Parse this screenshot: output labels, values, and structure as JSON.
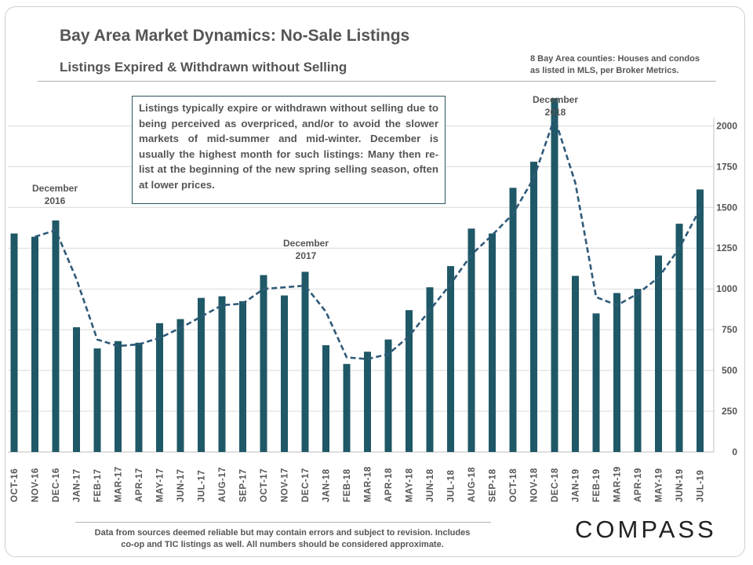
{
  "header": {
    "title": "Bay Area Market Dynamics: No-Sale Listings",
    "subtitle": "Listings Expired & Withdrawn without Selling",
    "source_line1": "8 Bay Area counties: Houses and condos",
    "source_line2": "as listed in MLS, per Broker Metrics."
  },
  "callout": {
    "text": "Listings typically expire or withdrawn without selling due to being perceived as overpriced, and/or to avoid the slower markets of mid-summer and mid-winter. December is usually the highest month for such listings: Many then re-list at the beginning of the new spring selling season, often at lower prices."
  },
  "footer": {
    "disclaimer_line1": "Data from sources deemed reliable but may contain errors and subject to revision.  Includes",
    "disclaimer_line2": "co-op and TIC listings as well. All numbers should be considered approximate.",
    "logo": "COMPASS"
  },
  "colors": {
    "bar": "#1f5866",
    "trend": "#2f5a78",
    "grid": "#d9d9d9",
    "text": "#555555"
  },
  "chart_data": {
    "type": "bar",
    "title": "Bay Area Market Dynamics: No-Sale Listings",
    "subtitle": "Listings Expired & Withdrawn without Selling",
    "categories": [
      "OCT-16",
      "NOV-16",
      "DEC-16",
      "JAN-17",
      "FEB-17",
      "MAR-17",
      "APR-17",
      "MAY-17",
      "JUN-17",
      "JUL-17",
      "AUG-17",
      "SEP-17",
      "OCT-17",
      "NOV-17",
      "DEC-17",
      "JAN-18",
      "FEB-18",
      "MAR-18",
      "APR-18",
      "MAY-18",
      "JUN-18",
      "JUL-18",
      "AUG-18",
      "SEP-18",
      "OCT-18",
      "NOV-18",
      "DEC-18",
      "JAN-19",
      "FEB-19",
      "MAR-19",
      "APR-19",
      "MAY-19",
      "JUN-19",
      "JUL-19"
    ],
    "series": [
      {
        "name": "No-sale listings",
        "type": "bar",
        "values": [
          1340,
          1320,
          1420,
          765,
          635,
          680,
          670,
          790,
          815,
          945,
          955,
          925,
          1085,
          960,
          1105,
          655,
          540,
          615,
          690,
          870,
          1010,
          1140,
          1370,
          1340,
          1620,
          1780,
          2170,
          1080,
          850,
          975,
          1000,
          1205,
          1400,
          1610
        ]
      },
      {
        "name": "Trend",
        "type": "line",
        "style": "dashed",
        "values": [
          null,
          1320,
          1360,
          1060,
          690,
          650,
          660,
          700,
          760,
          830,
          900,
          910,
          1000,
          1010,
          1020,
          860,
          580,
          570,
          600,
          710,
          870,
          1030,
          1210,
          1330,
          1460,
          1680,
          2050,
          1650,
          950,
          900,
          970,
          1070,
          1250,
          1490
        ]
      }
    ],
    "yaxis": {
      "ticks": [
        0,
        250,
        500,
        750,
        1000,
        1250,
        1500,
        1750,
        2000
      ],
      "ylim": [
        0,
        2050
      ],
      "position": "right"
    },
    "grid": true,
    "annotations": [
      {
        "line1": "December",
        "line2": "2016",
        "category": "DEC-16"
      },
      {
        "line1": "December",
        "line2": "2017",
        "category": "DEC-17"
      },
      {
        "line1": "December",
        "line2": "2018",
        "category": "DEC-18"
      }
    ]
  }
}
